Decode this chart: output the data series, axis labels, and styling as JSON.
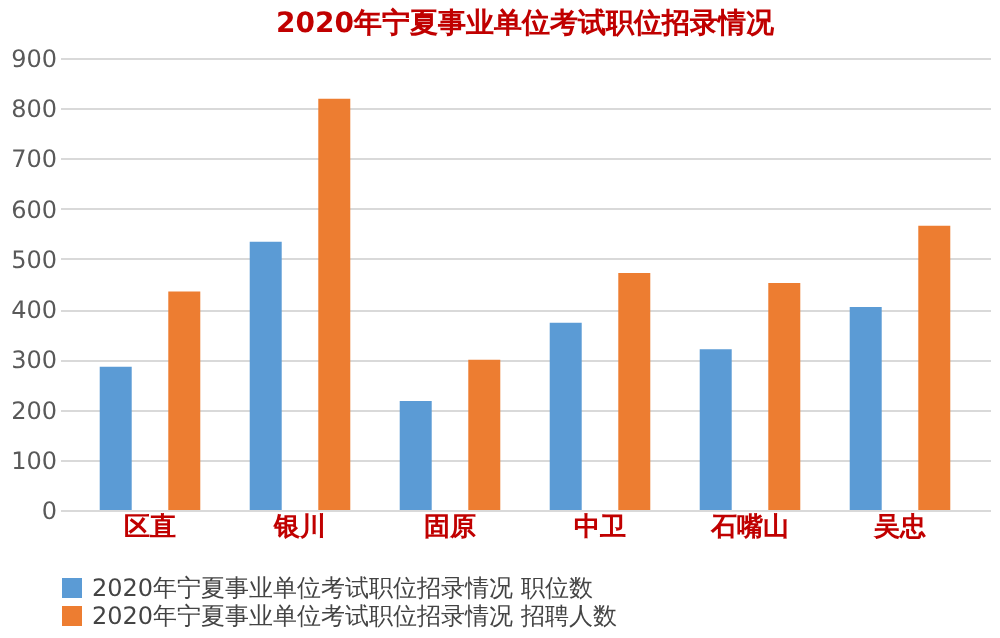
{
  "chart_data": {
    "type": "bar",
    "title": "2020年宁夏事业单位考试职位招录情况",
    "categories": [
      "区直",
      "银川",
      "固原",
      "中卫",
      "石嘴山",
      "吴忠"
    ],
    "series": [
      {
        "name": "2020年宁夏事业单位考试职位招录情况 职位数",
        "color": "#5b9bd5",
        "values": [
          285,
          534,
          217,
          373,
          320,
          404
        ]
      },
      {
        "name": "2020年宁夏事业单位考试职位招录情况 招聘人数",
        "color": "#ed7d31",
        "values": [
          435,
          819,
          299,
          472,
          452,
          566
        ]
      }
    ],
    "ylim": [
      0,
      900
    ],
    "yticks": [
      0,
      100,
      200,
      300,
      400,
      500,
      600,
      700,
      800,
      900
    ],
    "grid": "y",
    "legend": "bottom"
  }
}
